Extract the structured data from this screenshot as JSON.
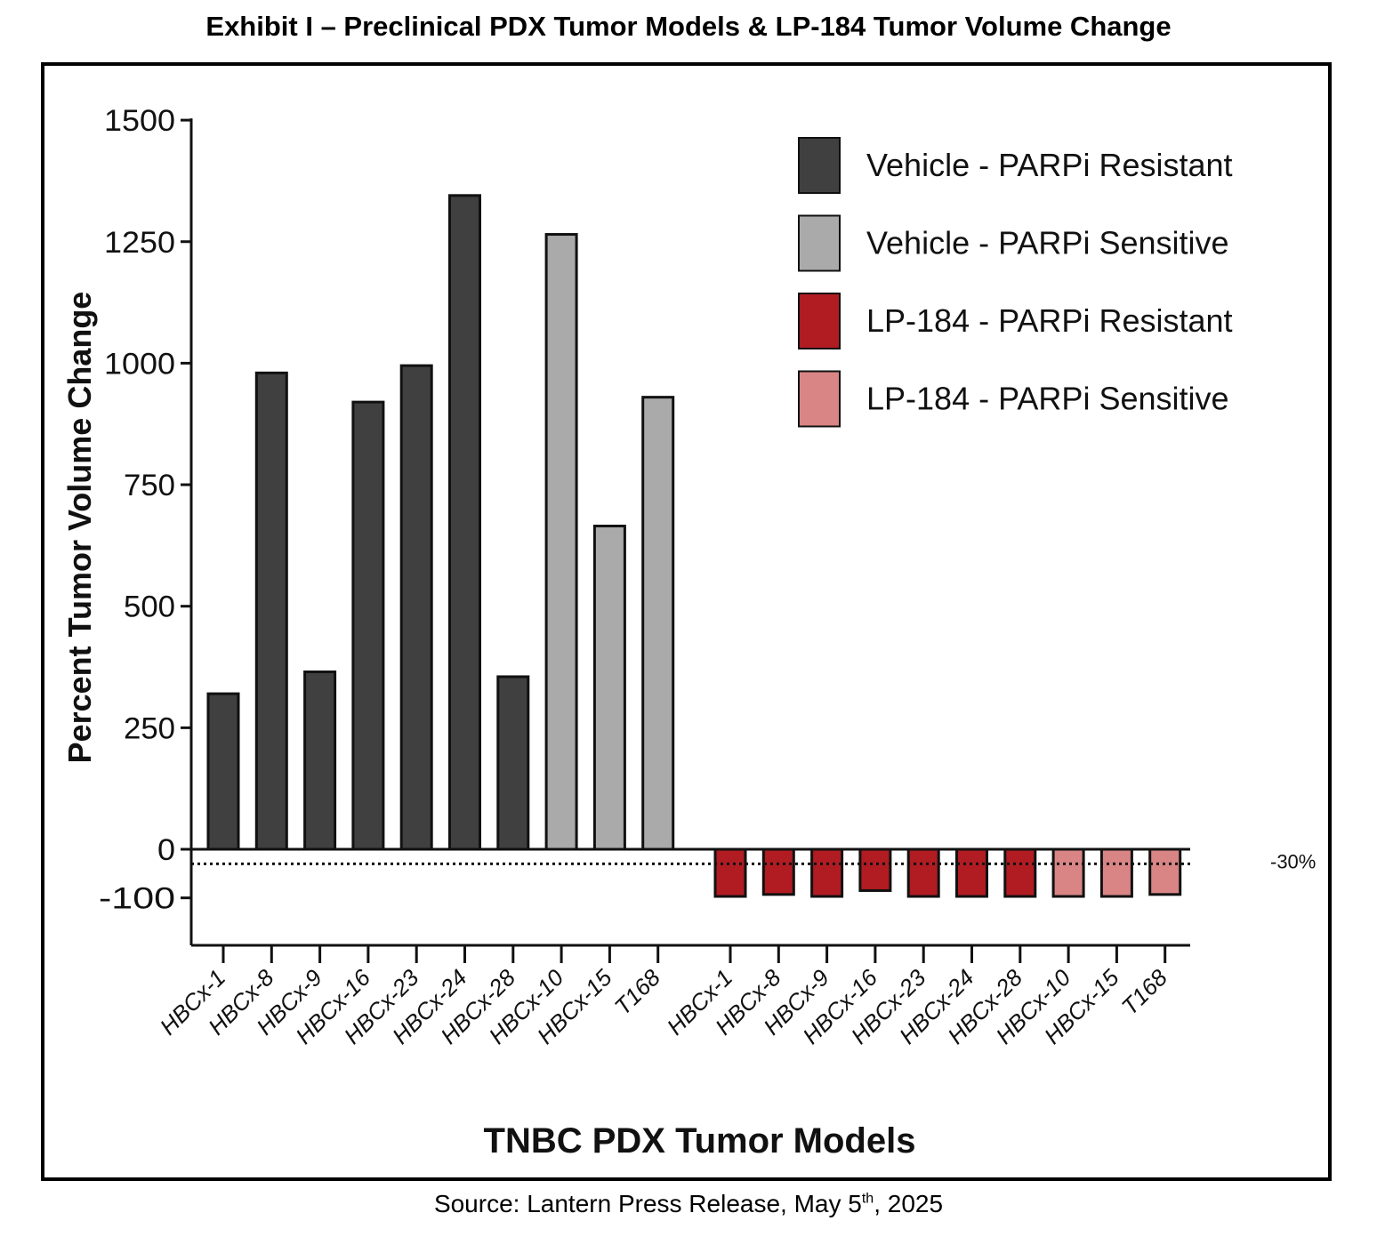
{
  "exhibit_title": "Exhibit I – Preclinical PDX Tumor Models & LP-184 Tumor Volume Change",
  "source": {
    "prefix": "Source: Lantern Press Release, May 5",
    "sup": "th",
    "suffix": ", 2025"
  },
  "chart_data": {
    "type": "bar",
    "title": "",
    "xlabel": "TNBC PDX Tumor Models",
    "ylabel": "Percent Tumor Volume Change",
    "ylim": [
      -200,
      1500
    ],
    "yticks": [
      1500,
      1250,
      1000,
      750,
      500,
      250,
      0,
      -100
    ],
    "grid": false,
    "legend_position": "top-right",
    "threshold": {
      "value": -30,
      "label": "-30%"
    },
    "categories": [
      "HBCx-1",
      "HBCx-8",
      "HBCx-9",
      "HBCx-16",
      "HBCx-23",
      "HBCx-24",
      "HBCx-28",
      "HBCx-10",
      "HBCx-15",
      "T168",
      "HBCx-1",
      "HBCx-8",
      "HBCx-9",
      "HBCx-16",
      "HBCx-23",
      "HBCx-24",
      "HBCx-28",
      "HBCx-10",
      "HBCx-15",
      "T168"
    ],
    "series": [
      {
        "name": "Vehicle - PARPi Resistant",
        "color": "#404040",
        "values": [
          320,
          980,
          365,
          920,
          995,
          1345,
          355,
          null,
          null,
          null,
          null,
          null,
          null,
          null,
          null,
          null,
          null,
          null,
          null,
          null
        ]
      },
      {
        "name": "Vehicle - PARPi Sensitive",
        "color": "#aaaaaa",
        "values": [
          null,
          null,
          null,
          null,
          null,
          null,
          null,
          1265,
          665,
          930,
          null,
          null,
          null,
          null,
          null,
          null,
          null,
          null,
          null,
          null
        ]
      },
      {
        "name": "LP-184 - PARPi Resistant",
        "color": "#b01c22",
        "values": [
          null,
          null,
          null,
          null,
          null,
          null,
          null,
          null,
          null,
          null,
          -97,
          -93,
          -97,
          -85,
          -97,
          -97,
          -97,
          null,
          null,
          null
        ]
      },
      {
        "name": "LP-184 - PARPi Sensitive",
        "color": "#d98585",
        "values": [
          null,
          null,
          null,
          null,
          null,
          null,
          null,
          null,
          null,
          null,
          null,
          null,
          null,
          null,
          null,
          null,
          null,
          -97,
          -97,
          -93
        ]
      }
    ]
  }
}
